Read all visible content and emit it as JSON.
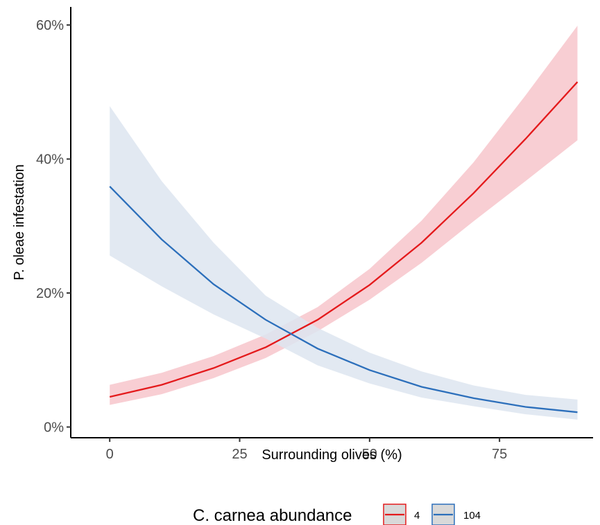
{
  "chart_data": {
    "type": "line",
    "xlabel": "Surrounding olives (%)",
    "ylabel": "P. oleae infestation",
    "xlim": [
      -7.5,
      93
    ],
    "ylim": [
      -1.6,
      62.7
    ],
    "x_ticks": [
      0,
      25,
      50,
      75
    ],
    "x_tick_labels": [
      "0",
      "25",
      "50",
      "75"
    ],
    "y_ticks": [
      0,
      20,
      40,
      60
    ],
    "y_tick_labels": [
      "0%",
      "20%",
      "40%",
      "60%"
    ],
    "grid": false,
    "legend": {
      "title": "C. carnea abundance",
      "position": "bottom"
    },
    "x": [
      0,
      10,
      20,
      30,
      40,
      50,
      60,
      70,
      80,
      90
    ],
    "series": [
      {
        "name": "4",
        "color": "#e41a1c",
        "ribbon_color": "#f7c6cb",
        "values": [
          4.5,
          6.3,
          8.8,
          11.9,
          16.0,
          21.2,
          27.5,
          34.9,
          43.0,
          51.5
        ],
        "lower": [
          3.3,
          4.9,
          7.3,
          10.3,
          14.3,
          19.0,
          24.5,
          30.7,
          36.7,
          42.8
        ],
        "upper": [
          6.3,
          8.1,
          10.6,
          13.8,
          17.9,
          23.6,
          30.8,
          39.5,
          49.5,
          59.9
        ]
      },
      {
        "name": "104",
        "color": "#2c6fbb",
        "ribbon_color": "#dde5f0",
        "values": [
          35.9,
          28.0,
          21.3,
          16.0,
          11.7,
          8.5,
          6.0,
          4.3,
          3.0,
          2.2
        ],
        "lower": [
          25.6,
          21.0,
          16.8,
          13.2,
          9.2,
          6.5,
          4.4,
          3.1,
          1.9,
          1.1
        ],
        "upper": [
          47.9,
          36.7,
          27.5,
          19.6,
          14.8,
          11.1,
          8.3,
          6.2,
          4.8,
          4.1
        ]
      }
    ]
  }
}
